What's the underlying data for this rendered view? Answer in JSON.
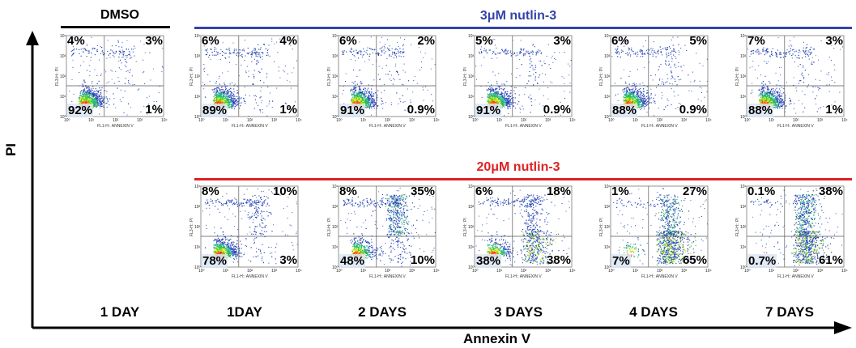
{
  "colors": {
    "dmso_line": "#000000",
    "low_line": "#3344aa",
    "high_line": "#dd2222",
    "low_title": "#3344aa",
    "high_title": "#dd2222"
  },
  "groups": {
    "dmso": "DMSO",
    "low": "3μM nutlin-3",
    "high": "20μM nutlin-3"
  },
  "axes": {
    "y": "PI",
    "x": "Annexin V"
  },
  "panel_axis": {
    "x_label": "FL1-H:: ANNEXIN V",
    "y_label": "FL3-H:: PI",
    "x_ticks": [
      "10⁰",
      "10¹",
      "10²",
      "10³",
      "10⁴"
    ],
    "y_ticks": [
      "10⁰",
      "10¹",
      "10²",
      "10³",
      "10⁴"
    ]
  },
  "days": [
    "1 DAY",
    "1DAY",
    "2 DAYS",
    "3 DAYS",
    "4 DAYS",
    "7 DAYS"
  ],
  "chart_data": {
    "type": "scatter",
    "description_units": "percent of cells per quadrant",
    "quadrant_order": [
      "upper-left",
      "upper-right",
      "lower-left",
      "lower-right"
    ],
    "panels": [
      {
        "group": "DMSO",
        "day": "1 DAY",
        "ul": "4%",
        "ur": "3%",
        "ll": "92%",
        "lr": "1%"
      },
      {
        "group": "3μM nutlin-3",
        "day": "1DAY",
        "ul": "6%",
        "ur": "4%",
        "ll": "89%",
        "lr": "1%"
      },
      {
        "group": "3μM nutlin-3",
        "day": "2 DAYS",
        "ul": "6%",
        "ur": "2%",
        "ll": "91%",
        "lr": "0.9%"
      },
      {
        "group": "3μM nutlin-3",
        "day": "3 DAYS",
        "ul": "5%",
        "ur": "3%",
        "ll": "91%",
        "lr": "0.9%"
      },
      {
        "group": "3μM nutlin-3",
        "day": "4 DAYS",
        "ul": "6%",
        "ur": "5%",
        "ll": "88%",
        "lr": "0.9%"
      },
      {
        "group": "3μM nutlin-3",
        "day": "7 DAYS",
        "ul": "7%",
        "ur": "3%",
        "ll": "88%",
        "lr": "1%"
      },
      {
        "group": "20μM nutlin-3",
        "day": "1DAY",
        "ul": "8%",
        "ur": "10%",
        "ll": "78%",
        "lr": "3%"
      },
      {
        "group": "20μM nutlin-3",
        "day": "2 DAYS",
        "ul": "8%",
        "ur": "35%",
        "ll": "48%",
        "lr": "10%"
      },
      {
        "group": "20μM nutlin-3",
        "day": "3 DAYS",
        "ul": "6%",
        "ur": "18%",
        "ll": "38%",
        "lr": "38%"
      },
      {
        "group": "20μM nutlin-3",
        "day": "4 DAYS",
        "ul": "1%",
        "ur": "27%",
        "ll": "7%",
        "lr": "65%"
      },
      {
        "group": "20μM nutlin-3",
        "day": "7 DAYS",
        "ul": "0.1%",
        "ur": "38%",
        "ll": "0.7%",
        "lr": "61%"
      }
    ]
  }
}
